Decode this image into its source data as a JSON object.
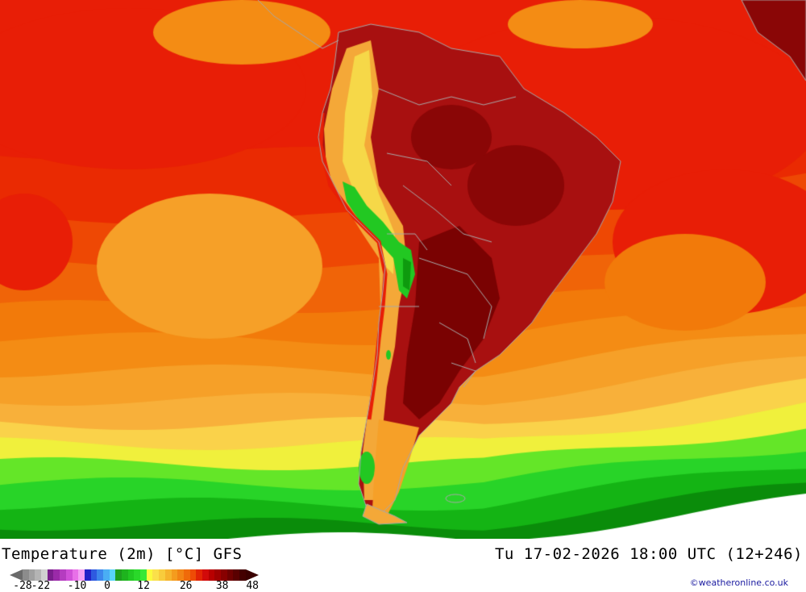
{
  "title": "Temperature (2m) [°C] GFS",
  "valid_time": "Tu 17-02-2026 18:00 UTC (12+246)",
  "credit": "©weatheronline.co.uk",
  "legend": {
    "ticks": [
      {
        "label": "-28",
        "value": -28
      },
      {
        "label": "-22",
        "value": -22
      },
      {
        "label": "-10",
        "value": -10
      },
      {
        "label": "0",
        "value": 0
      },
      {
        "label": "12",
        "value": 12
      },
      {
        "label": "26",
        "value": 26
      },
      {
        "label": "38",
        "value": 38
      },
      {
        "label": "48",
        "value": 48
      }
    ],
    "colors": [
      "#8c8c8c",
      "#a0a0a0",
      "#b4b4b4",
      "#d0d0d0",
      "#7a1e8c",
      "#9a2aa8",
      "#b53cc0",
      "#d050d8",
      "#e870e8",
      "#f4a0f4",
      "#2222c8",
      "#2e5ae0",
      "#3c86ec",
      "#4aaef4",
      "#58d4fa",
      "#1e9e1e",
      "#1eb41e",
      "#22c822",
      "#2ad82a",
      "#36e836",
      "#fafa3c",
      "#fae04a",
      "#f8cc3c",
      "#f6b42c",
      "#f49c1e",
      "#f28414",
      "#f06a0a",
      "#ee4c06",
      "#e22404",
      "#d20a0a",
      "#b80000",
      "#a00000",
      "#880000",
      "#700000",
      "#5a0000",
      "#440000"
    ]
  },
  "map": {
    "ocean_bands": [
      "#0a8c0a",
      "#14b414",
      "#28d428",
      "#64e628",
      "#f0f03c",
      "#fad24a",
      "#f8b03a",
      "#f6a028",
      "#f48c14",
      "#f27a0a",
      "#f06408",
      "#ee4804",
      "#ea2a02",
      "#e81e06"
    ],
    "land_colors": {
      "hot": "#a81010",
      "very_hot": "#7a0202",
      "warm": "#e45000",
      "andes": "#f4a838",
      "cool": "#f6d848",
      "green": "#22c822",
      "dark_green": "#0e9a0e"
    }
  }
}
